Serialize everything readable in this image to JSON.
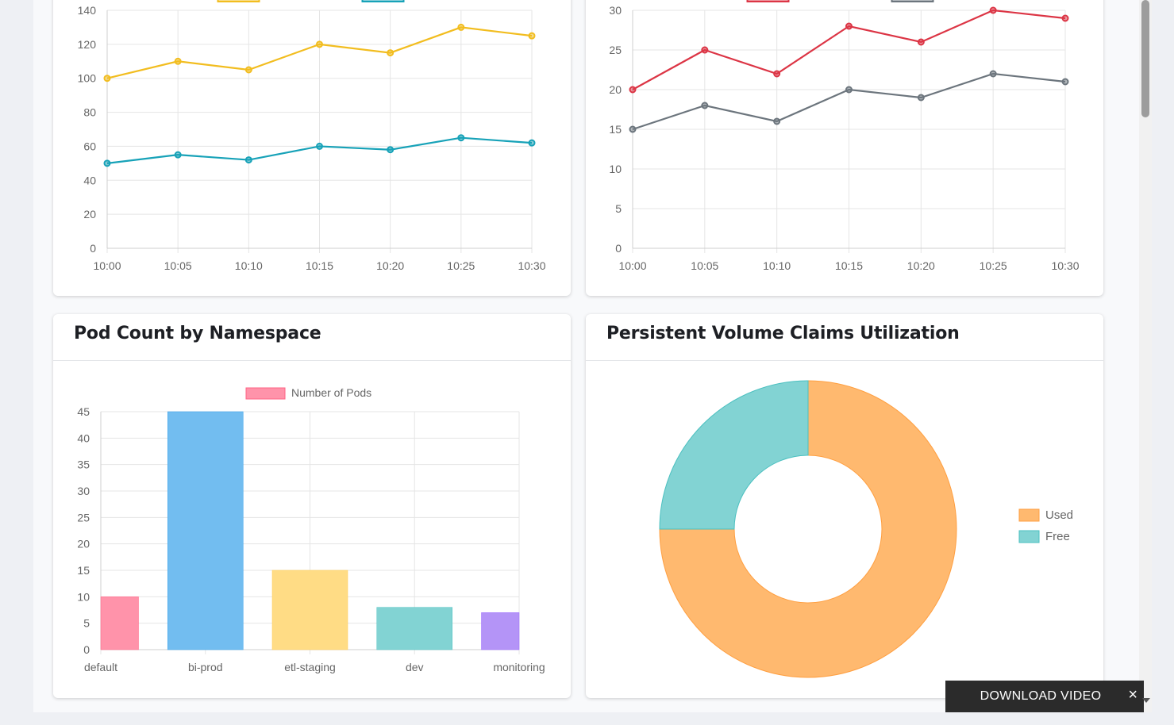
{
  "cards": {
    "pod_count": {
      "title": "Pod Count by Namespace"
    },
    "pvc": {
      "title": "Persistent Volume Claims Utilization"
    }
  },
  "download_bar": {
    "label": "DOWNLOAD VIDEO",
    "close_icon": "×"
  },
  "chart_data": [
    {
      "type": "line",
      "x": [
        "10:00",
        "10:05",
        "10:10",
        "10:15",
        "10:20",
        "10:25",
        "10:30"
      ],
      "ylim": [
        0,
        140
      ],
      "yticks": [
        0,
        20,
        40,
        60,
        80,
        100,
        120,
        140
      ],
      "grid": true,
      "legend": "top",
      "series": [
        {
          "values": [
            100,
            110,
            105,
            120,
            115,
            130,
            125
          ],
          "color": "#f2bd1f"
        },
        {
          "values": [
            50,
            55,
            52,
            60,
            58,
            65,
            62
          ],
          "color": "#17a2b8"
        }
      ]
    },
    {
      "type": "line",
      "x": [
        "10:00",
        "10:05",
        "10:10",
        "10:15",
        "10:20",
        "10:25",
        "10:30"
      ],
      "ylim": [
        0,
        30
      ],
      "yticks": [
        0,
        5,
        10,
        15,
        20,
        25,
        30
      ],
      "grid": true,
      "legend": "top",
      "series": [
        {
          "values": [
            20,
            25,
            22,
            28,
            26,
            30,
            29
          ],
          "color": "#dc3545"
        },
        {
          "values": [
            15,
            18,
            16,
            20,
            19,
            22,
            21
          ],
          "color": "#6c757d"
        }
      ]
    },
    {
      "type": "bar",
      "categories": [
        "default",
        "bi-prod",
        "etl-staging",
        "dev",
        "monitoring"
      ],
      "values": [
        10,
        45,
        15,
        8,
        7
      ],
      "colors": [
        "#ff93aa",
        "#72bdf0",
        "#ffdc85",
        "#82d3d3",
        "#b494f7"
      ],
      "series_name": "Number of Pods",
      "ylim": [
        0,
        45
      ],
      "yticks": [
        0,
        5,
        10,
        15,
        20,
        25,
        30,
        35,
        40,
        45
      ],
      "grid": true,
      "legend": "top"
    },
    {
      "type": "pie",
      "labels": [
        "Used",
        "Free"
      ],
      "values": [
        75,
        25
      ],
      "colors": [
        "#ffb96f",
        "#82d3d3"
      ],
      "legend": "right"
    }
  ]
}
